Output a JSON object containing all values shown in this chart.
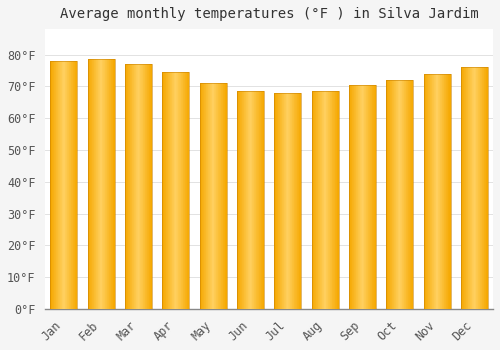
{
  "title": "Average monthly temperatures (°F ) in Silva Jardim",
  "months": [
    "Jan",
    "Feb",
    "Mar",
    "Apr",
    "May",
    "Jun",
    "Jul",
    "Aug",
    "Sep",
    "Oct",
    "Nov",
    "Dec"
  ],
  "values": [
    78,
    78.5,
    77,
    74.5,
    71,
    68.5,
    68,
    68.5,
    70.5,
    72,
    74,
    76
  ],
  "bar_color_center": "#FFD060",
  "bar_color_edge": "#F5A800",
  "ylim": [
    0,
    88
  ],
  "yticks": [
    0,
    10,
    20,
    30,
    40,
    50,
    60,
    70,
    80
  ],
  "ylabel_suffix": "°F",
  "plot_bg_color": "#FFFFFF",
  "fig_bg_color": "#F5F5F5",
  "grid_color": "#DDDDDD",
  "title_fontsize": 10,
  "tick_fontsize": 8.5,
  "spine_color": "#888888"
}
